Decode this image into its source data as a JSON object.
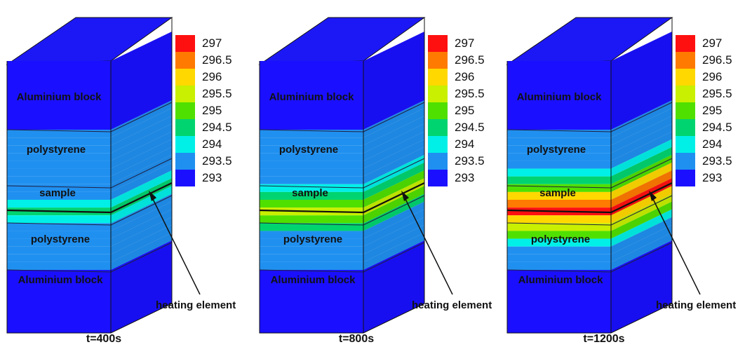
{
  "scale": {
    "ticks": [
      "297",
      "296.5",
      "296",
      "295.5",
      "295",
      "294.5",
      "294",
      "293.5",
      "293"
    ],
    "colors": [
      "#ff1010",
      "#ff7a00",
      "#ffd800",
      "#c8f000",
      "#50e000",
      "#00d470",
      "#00f0e8",
      "#2090f0",
      "#1a10ff",
      "#0020e8"
    ]
  },
  "panels": [
    {
      "caption": "t=400s",
      "labels": {
        "alu_top": "Aluminium block",
        "poly_top": "polystyrene",
        "sample": "sample",
        "poly_bottom": "polystyrene",
        "alu_bottom": "Aluminium block",
        "heating": "heating element"
      },
      "heat_level": 0.35
    },
    {
      "caption": "t=800s",
      "labels": {
        "alu_top": "Aluminium block",
        "poly_top": "polystyrene",
        "sample": "sample",
        "poly_bottom": "polystyrene",
        "alu_bottom": "Aluminium block",
        "heating": "heating element"
      },
      "heat_level": 0.65
    },
    {
      "caption": "t=1200s",
      "labels": {
        "alu_top": "Aluminium block",
        "poly_top": "polystyrene",
        "sample": "sample",
        "poly_bottom": "polystyrene",
        "alu_bottom": "Aluminium block",
        "heating": "heating element"
      },
      "heat_level": 1.0
    }
  ]
}
